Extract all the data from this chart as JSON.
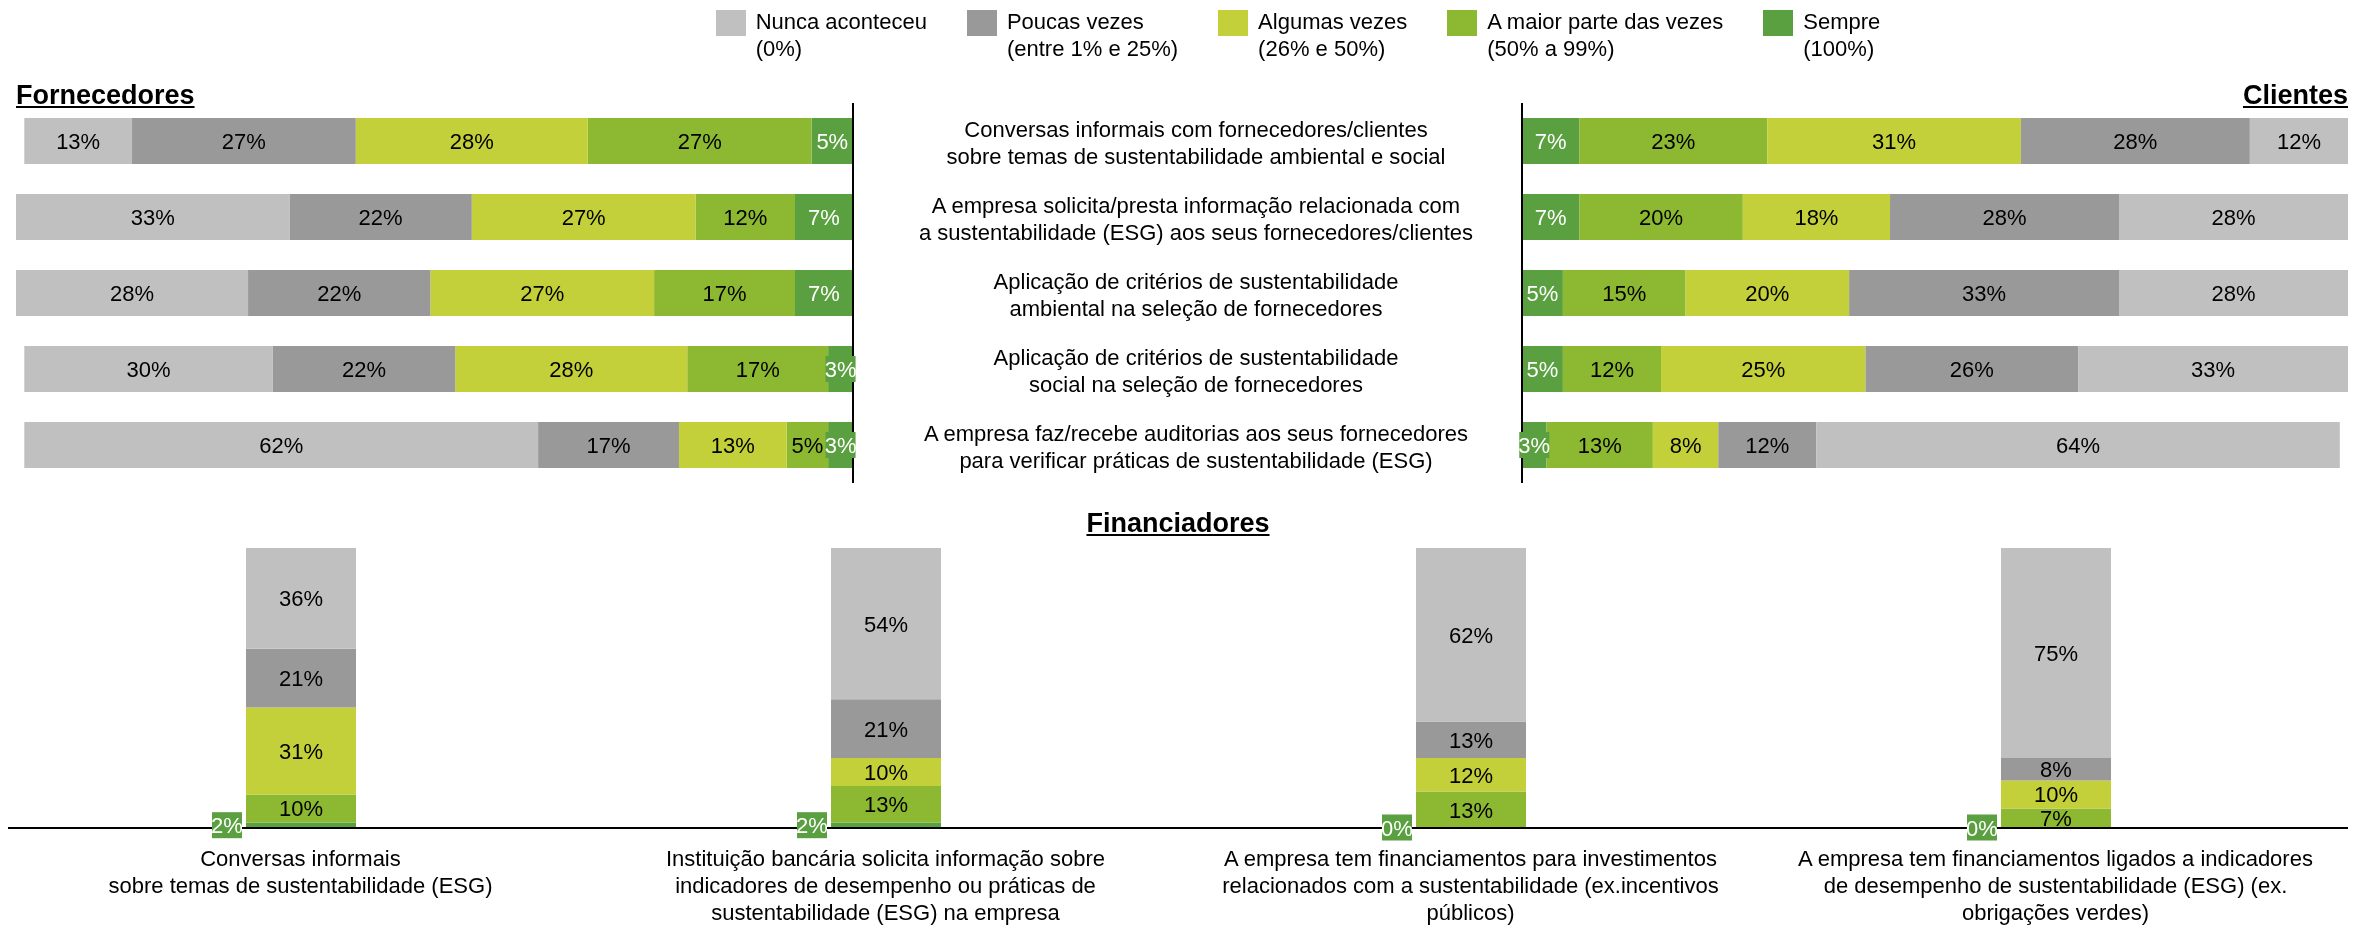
{
  "chart_data": [
    {
      "type": "bar",
      "title": "Fornecedores",
      "orientation": "horizontal",
      "stacked": true,
      "legend": "top",
      "categories": [
        "Conversas informais com fornecedores/clientes\nsobre temas de sustentabilidade ambiental e social",
        "A empresa solicita/presta informação relacionada com\na sustentabilidade (ESG) aos seus fornecedores/clientes",
        "Aplicação de critérios de sustentabilidade\nambiental na seleção de fornecedores",
        "Aplicação de critérios de sustentabilidade\nsocial na seleção de fornecedores",
        "A empresa faz/recebe auditorias aos seus fornecedores\npara verificar práticas de sustentabilidade (ESG)"
      ],
      "series": [
        {
          "name": "Sempre\n(100%)",
          "color": "#5aa040",
          "values": [
            5,
            7,
            7,
            3,
            3
          ],
          "value_labels": [
            "5%",
            "7%",
            "7%",
            "3%",
            "3%"
          ]
        },
        {
          "name": "A maior parte das vezes\n(50% a 99%)",
          "color": "#8cb832",
          "values": [
            27,
            12,
            17,
            17,
            5
          ],
          "value_labels": [
            "27%",
            "12%",
            "17%",
            "17%",
            "5%"
          ]
        },
        {
          "name": "Algumas vezes\n(26% e 50%)",
          "color": "#c3d03a",
          "values": [
            28,
            27,
            27,
            28,
            13
          ],
          "value_labels": [
            "28%",
            "27%",
            "27%",
            "28%",
            "13%"
          ]
        },
        {
          "name": "Poucas vezes\n(entre 1% e 25%)",
          "color": "#999999",
          "values": [
            27,
            22,
            22,
            22,
            17
          ],
          "value_labels": [
            "27%",
            "22%",
            "22%",
            "22%",
            "17%"
          ]
        },
        {
          "name": "Nunca aconteceu\n(0%)",
          "color": "#c0c0c0",
          "values": [
            13,
            33,
            28,
            30,
            62
          ],
          "value_labels": [
            "13%",
            "33%",
            "28%",
            "30%",
            "62%"
          ]
        }
      ]
    },
    {
      "type": "bar",
      "title": "Clientes",
      "orientation": "horizontal",
      "stacked": true,
      "categories": [
        null,
        null,
        null,
        null,
        null
      ],
      "series": [
        {
          "color": "#5aa040",
          "values": [
            7,
            7,
            5,
            5,
            3
          ],
          "value_labels": [
            "7%",
            "7%",
            "5%",
            "5%",
            "3%"
          ]
        },
        {
          "color": "#8cb832",
          "values": [
            23,
            20,
            15,
            12,
            13
          ],
          "value_labels": [
            "23%",
            "20%",
            "15%",
            "12%",
            "13%"
          ]
        },
        {
          "color": "#c3d03a",
          "values": [
            31,
            18,
            20,
            25,
            8
          ],
          "value_labels": [
            "31%",
            "18%",
            "20%",
            "25%",
            "8%"
          ]
        },
        {
          "color": "#999999",
          "values": [
            28,
            28,
            33,
            26,
            12
          ],
          "value_labels": [
            "28%",
            "28%",
            "33%",
            "26%",
            "12%"
          ]
        },
        {
          "color": "#c0c0c0",
          "values": [
            12,
            28,
            28,
            33,
            64
          ],
          "value_labels": [
            "12%",
            "28%",
            "28%",
            "33%",
            "64%"
          ]
        }
      ]
    },
    {
      "type": "bar",
      "title": "Financiadores",
      "stacked": true,
      "categories": [
        "Conversas informais\nsobre temas de sustentabilidade (ESG)",
        "Instituição bancária solicita informação sobre\nindicadores de desempenho ou práticas de\nsustentabilidade (ESG) na empresa",
        "A empresa tem financiamentos para investimentos\nrelacionados com a sustentabilidade (ex.incentivos\npúblicos)",
        "A empresa tem financiamentos ligados a indicadores\nde desempenho de sustentabilidade (ESG) (ex.\nobrigações verdes)"
      ],
      "series": [
        {
          "color": "#5aa040",
          "values": [
            2,
            2,
            0,
            0
          ],
          "value_labels": [
            "2%",
            "2%",
            "0%",
            "0%"
          ]
        },
        {
          "color": "#8cb832",
          "values": [
            10,
            13,
            13,
            7
          ],
          "value_labels": [
            "10%",
            "13%",
            "13%",
            "7%"
          ]
        },
        {
          "color": "#c3d03a",
          "values": [
            31,
            10,
            12,
            10
          ],
          "value_labels": [
            "31%",
            "10%",
            "12%",
            "10%"
          ]
        },
        {
          "color": "#999999",
          "values": [
            21,
            21,
            13,
            8
          ],
          "value_labels": [
            "21%",
            "21%",
            "13%",
            "8%"
          ]
        },
        {
          "color": "#c0c0c0",
          "values": [
            36,
            54,
            62,
            75
          ],
          "value_labels": [
            "36%",
            "54%",
            "62%",
            "75%"
          ]
        }
      ]
    }
  ]
}
